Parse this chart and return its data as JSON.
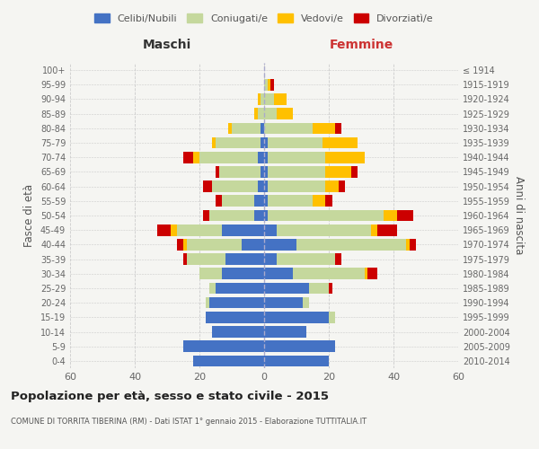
{
  "age_groups": [
    "0-4",
    "5-9",
    "10-14",
    "15-19",
    "20-24",
    "25-29",
    "30-34",
    "35-39",
    "40-44",
    "45-49",
    "50-54",
    "55-59",
    "60-64",
    "65-69",
    "70-74",
    "75-79",
    "80-84",
    "85-89",
    "90-94",
    "95-99",
    "100+"
  ],
  "birth_years": [
    "2010-2014",
    "2005-2009",
    "2000-2004",
    "1995-1999",
    "1990-1994",
    "1985-1989",
    "1980-1984",
    "1975-1979",
    "1970-1974",
    "1965-1969",
    "1960-1964",
    "1955-1959",
    "1950-1954",
    "1945-1949",
    "1940-1944",
    "1935-1939",
    "1930-1934",
    "1925-1929",
    "1920-1924",
    "1915-1919",
    "≤ 1914"
  ],
  "male": {
    "celibe": [
      22,
      25,
      16,
      18,
      17,
      15,
      13,
      12,
      7,
      13,
      3,
      3,
      2,
      1,
      2,
      1,
      1,
      0,
      0,
      0,
      0
    ],
    "coniugato": [
      0,
      0,
      0,
      0,
      1,
      2,
      7,
      12,
      17,
      14,
      14,
      10,
      14,
      13,
      18,
      14,
      9,
      2,
      1,
      0,
      0
    ],
    "vedovo": [
      0,
      0,
      0,
      0,
      0,
      0,
      0,
      0,
      1,
      2,
      0,
      0,
      0,
      0,
      2,
      1,
      1,
      1,
      1,
      0,
      0
    ],
    "divorziato": [
      0,
      0,
      0,
      0,
      0,
      0,
      0,
      1,
      2,
      4,
      2,
      2,
      3,
      1,
      3,
      0,
      0,
      0,
      0,
      0,
      0
    ]
  },
  "female": {
    "nubile": [
      20,
      22,
      13,
      20,
      12,
      14,
      9,
      4,
      10,
      4,
      1,
      1,
      1,
      1,
      1,
      1,
      0,
      0,
      0,
      0,
      0
    ],
    "coniugata": [
      0,
      0,
      0,
      2,
      2,
      6,
      22,
      18,
      34,
      29,
      36,
      14,
      18,
      18,
      18,
      17,
      15,
      4,
      3,
      1,
      0
    ],
    "vedova": [
      0,
      0,
      0,
      0,
      0,
      0,
      1,
      0,
      1,
      2,
      4,
      4,
      4,
      8,
      12,
      11,
      7,
      5,
      4,
      1,
      0
    ],
    "divorziata": [
      0,
      0,
      0,
      0,
      0,
      1,
      3,
      2,
      2,
      6,
      5,
      2,
      2,
      2,
      0,
      0,
      2,
      0,
      0,
      1,
      0
    ]
  },
  "colors": {
    "celibe": "#4472c4",
    "coniugato": "#c5d89d",
    "vedovo": "#ffc000",
    "divorziato": "#cc0000"
  },
  "xlim": 60,
  "title": "Popolazione per età, sesso e stato civile - 2015",
  "subtitle": "COMUNE DI TORRITA TIBERINA (RM) - Dati ISTAT 1° gennaio 2015 - Elaborazione TUTTITALIA.IT",
  "ylabel_left": "Fasce di età",
  "ylabel_right": "Anni di nascita",
  "xlabel_maschi": "Maschi",
  "xlabel_femmine": "Femmine",
  "bg_color": "#f5f5f2",
  "grid_color": "#cccccc"
}
